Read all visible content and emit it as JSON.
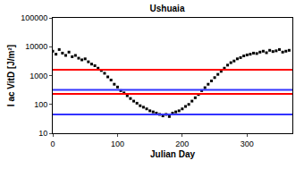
{
  "chart_data": {
    "type": "scatter",
    "title": "Ushuaia",
    "x_label": "Julian Day",
    "y_label": "I ac VitD [J/m²]",
    "log": "y",
    "grid": false,
    "xlim": [
      0,
      370
    ],
    "xticks": [
      0,
      100,
      200,
      300
    ],
    "ylim": [
      10,
      100000
    ],
    "yticks": [
      10,
      100,
      1000,
      10000,
      100000
    ],
    "series": [
      {
        "type": "scatter",
        "color": "#000000",
        "marker": "square",
        "x": [
          0,
          5,
          10,
          15,
          20,
          25,
          30,
          35,
          40,
          45,
          50,
          55,
          60,
          65,
          70,
          75,
          80,
          85,
          90,
          95,
          100,
          105,
          110,
          115,
          120,
          125,
          130,
          135,
          140,
          145,
          150,
          155,
          160,
          165,
          170,
          175,
          180,
          185,
          190,
          195,
          200,
          205,
          210,
          215,
          220,
          225,
          230,
          235,
          240,
          245,
          250,
          255,
          260,
          265,
          270,
          275,
          280,
          285,
          290,
          295,
          300,
          305,
          310,
          315,
          320,
          325,
          330,
          335,
          340,
          345,
          350,
          355,
          360,
          365
        ],
        "values": [
          7000,
          5500,
          8000,
          6000,
          5000,
          6500,
          4500,
          5000,
          4000,
          3500,
          3800,
          3000,
          2500,
          2200,
          1800,
          1500,
          1200,
          900,
          700,
          500,
          400,
          300,
          250,
          200,
          160,
          130,
          110,
          90,
          80,
          70,
          60,
          55,
          50,
          45,
          40,
          45,
          38,
          50,
          55,
          60,
          70,
          85,
          100,
          130,
          170,
          220,
          300,
          380,
          500,
          650,
          850,
          1100,
          1400,
          1800,
          2300,
          2800,
          3200,
          3800,
          4200,
          4800,
          5200,
          5500,
          6000,
          5800,
          6500,
          7000,
          6200,
          7500,
          6800,
          7200,
          8000,
          6500,
          7000,
          7500
        ]
      },
      {
        "type": "line",
        "color": "#ff0000",
        "line_style": "solid",
        "x": [
          0,
          370
        ],
        "values": [
          1600,
          1600
        ]
      },
      {
        "type": "line",
        "color": "#ff0000",
        "line_style": "solid",
        "x": [
          0,
          370
        ],
        "values": [
          230,
          230
        ]
      },
      {
        "type": "line",
        "color": "#3333ff",
        "line_style": "solid",
        "x": [
          0,
          370
        ],
        "values": [
          320,
          320
        ]
      },
      {
        "type": "line",
        "color": "#3333ff",
        "line_style": "solid",
        "x": [
          0,
          370
        ],
        "values": [
          45,
          45
        ]
      }
    ]
  }
}
